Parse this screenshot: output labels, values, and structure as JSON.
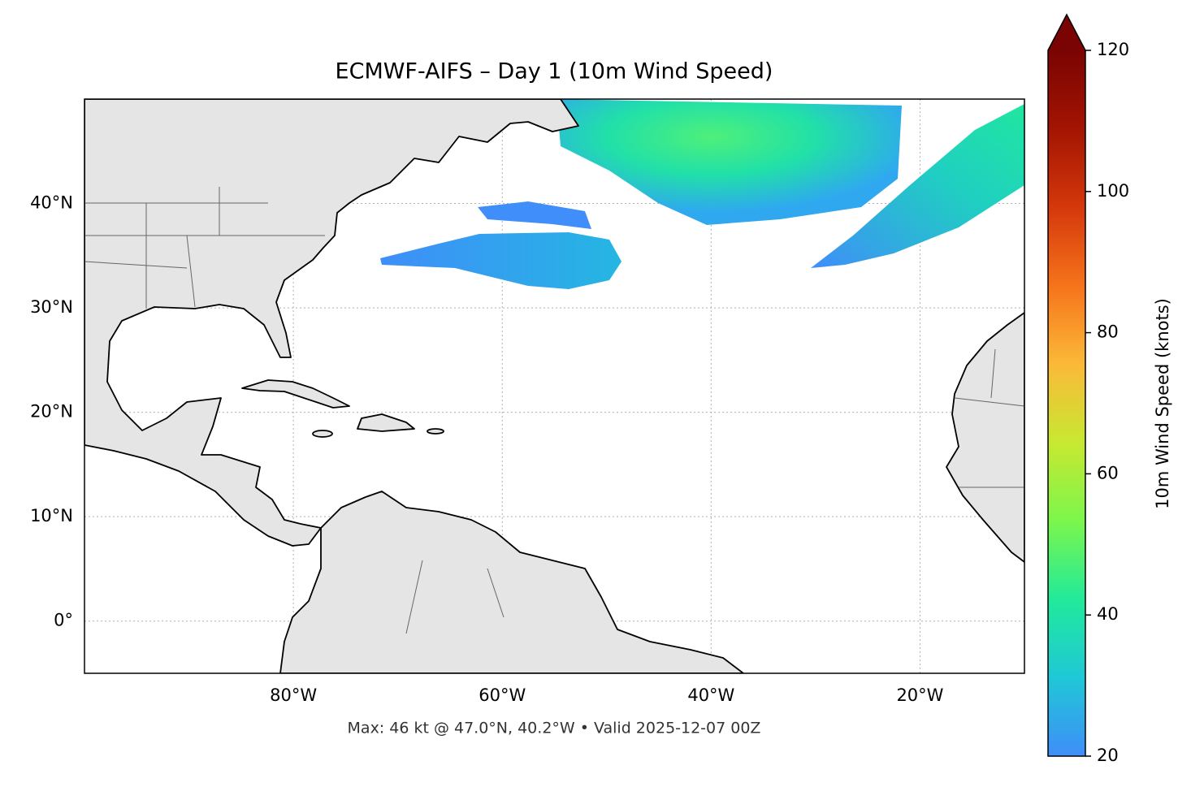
{
  "chart_data": {
    "type": "map",
    "title": "ECMWF-AIFS – Day 1 (10m Wind Speed)",
    "note": "Max: 46 kt @ 47.0°N, 40.2°W • Valid 2025-12-07 00Z",
    "xlim": [
      -100,
      -10
    ],
    "ylim": [
      -5,
      50
    ],
    "xticks": [
      {
        "value": -80,
        "label": "80°W"
      },
      {
        "value": -60,
        "label": "60°W"
      },
      {
        "value": -40,
        "label": "40°W"
      },
      {
        "value": -20,
        "label": "20°W"
      }
    ],
    "yticks": [
      {
        "value": 0,
        "label": "0°"
      },
      {
        "value": 10,
        "label": "10°N"
      },
      {
        "value": 20,
        "label": "20°N"
      },
      {
        "value": 30,
        "label": "30°N"
      },
      {
        "value": 40,
        "label": "40°N"
      }
    ],
    "grid": true,
    "colorbar": {
      "label": "10m Wind Speed (knots)",
      "lim": [
        20,
        120
      ],
      "ticks": [
        20,
        40,
        60,
        80,
        100,
        120
      ],
      "extend": "max",
      "colors": [
        "#3f8ef9",
        "#1fc8d6",
        "#21ea9a",
        "#7cf64c",
        "#c8e831",
        "#fbb938",
        "#f6731b",
        "#d4380b",
        "#a31402",
        "#7a0403"
      ]
    }
  }
}
